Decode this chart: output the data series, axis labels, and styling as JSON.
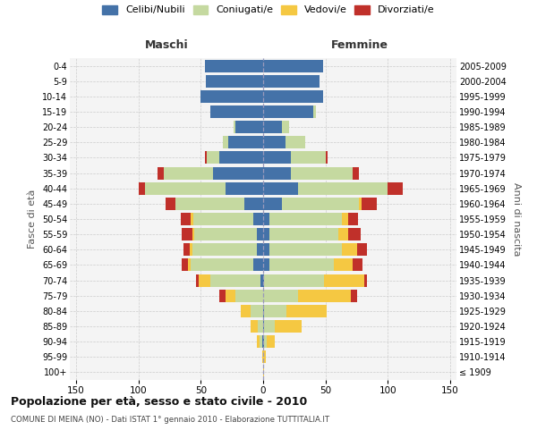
{
  "age_groups": [
    "100+",
    "95-99",
    "90-94",
    "85-89",
    "80-84",
    "75-79",
    "70-74",
    "65-69",
    "60-64",
    "55-59",
    "50-54",
    "45-49",
    "40-44",
    "35-39",
    "30-34",
    "25-29",
    "20-24",
    "15-19",
    "10-14",
    "5-9",
    "0-4"
  ],
  "birth_years": [
    "≤ 1909",
    "1910-1914",
    "1915-1919",
    "1920-1924",
    "1925-1929",
    "1930-1934",
    "1935-1939",
    "1940-1944",
    "1945-1949",
    "1950-1954",
    "1955-1959",
    "1960-1964",
    "1965-1969",
    "1970-1974",
    "1975-1979",
    "1980-1984",
    "1985-1989",
    "1990-1994",
    "1995-1999",
    "2000-2004",
    "2005-2009"
  ],
  "males": {
    "celibi": [
      0,
      0,
      1,
      0,
      0,
      0,
      2,
      8,
      5,
      5,
      8,
      15,
      30,
      40,
      35,
      28,
      22,
      42,
      50,
      46,
      47
    ],
    "coniugati": [
      0,
      0,
      2,
      4,
      10,
      22,
      40,
      50,
      52,
      50,
      48,
      55,
      65,
      40,
      10,
      4,
      2,
      0,
      0,
      0,
      0
    ],
    "vedovi": [
      0,
      1,
      2,
      6,
      8,
      8,
      10,
      2,
      2,
      2,
      2,
      0,
      0,
      0,
      0,
      0,
      0,
      0,
      0,
      0,
      0
    ],
    "divorziati": [
      0,
      0,
      0,
      0,
      0,
      5,
      2,
      5,
      5,
      8,
      8,
      8,
      5,
      5,
      2,
      0,
      0,
      0,
      0,
      0,
      0
    ]
  },
  "females": {
    "nubili": [
      0,
      0,
      1,
      1,
      1,
      0,
      1,
      5,
      5,
      5,
      5,
      15,
      28,
      22,
      22,
      18,
      15,
      40,
      48,
      45,
      48
    ],
    "coniugate": [
      0,
      0,
      2,
      8,
      18,
      28,
      48,
      52,
      58,
      55,
      58,
      62,
      72,
      50,
      28,
      16,
      6,
      2,
      0,
      0,
      0
    ],
    "vedove": [
      1,
      2,
      6,
      22,
      32,
      42,
      32,
      15,
      12,
      8,
      5,
      2,
      0,
      0,
      0,
      0,
      0,
      0,
      0,
      0,
      0
    ],
    "divorziate": [
      0,
      0,
      0,
      0,
      0,
      5,
      2,
      8,
      8,
      10,
      8,
      12,
      12,
      5,
      2,
      0,
      0,
      0,
      0,
      0,
      0
    ]
  },
  "colors": {
    "celibi": "#4472a8",
    "coniugati": "#c5d9a0",
    "vedovi": "#f5c842",
    "divorziati": "#c0302a"
  },
  "title": "Popolazione per età, sesso e stato civile - 2010",
  "subtitle": "COMUNE DI MEINA (NO) - Dati ISTAT 1° gennaio 2010 - Elaborazione TUTTITALIA.IT",
  "xlabel_left": "Maschi",
  "xlabel_right": "Femmine",
  "ylabel_left": "Fasce di età",
  "ylabel_right": "Anni di nascita",
  "legend_labels": [
    "Celibi/Nubili",
    "Coniugati/e",
    "Vedovi/e",
    "Divorziati/e"
  ],
  "xlim": 155,
  "bg_color": "#f4f4f4",
  "grid_color": "#cccccc"
}
